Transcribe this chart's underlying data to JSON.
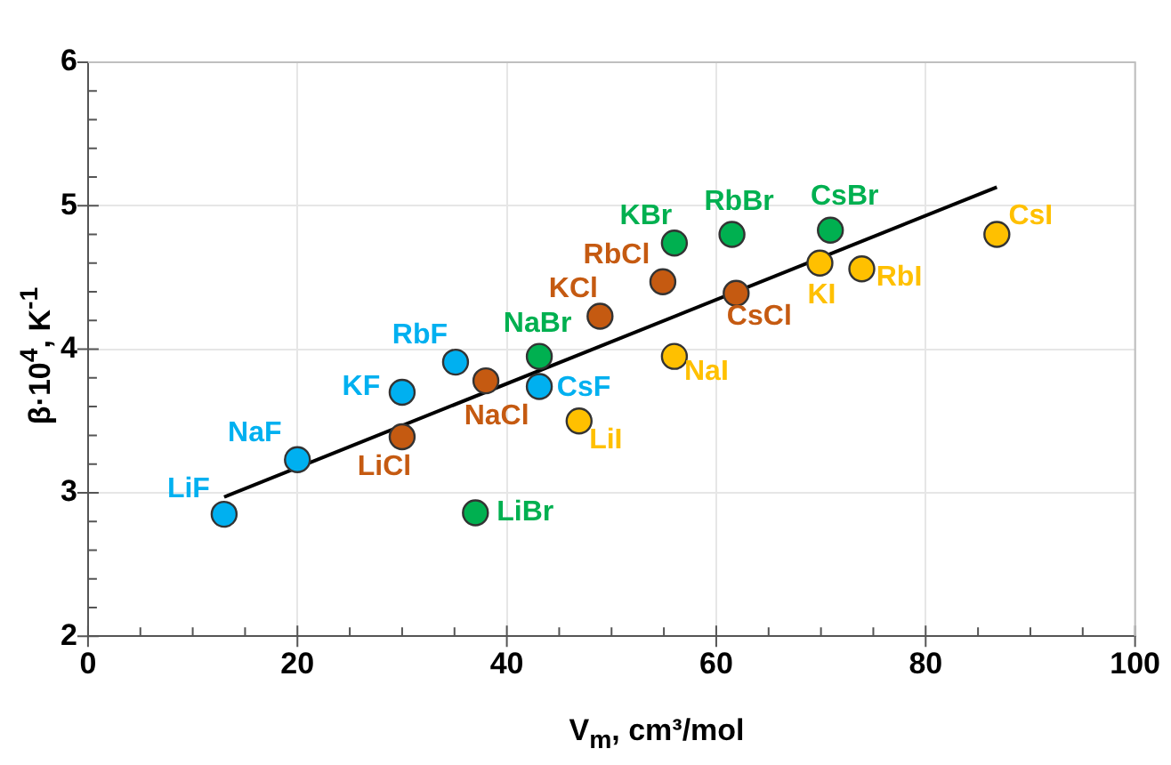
{
  "chart_data": {
    "type": "scatter",
    "xlabel": "V$_{m}$, cm³/mol",
    "ylabel": "β·10$^{4}$, K$^{-1}$",
    "xlim": [
      0,
      100
    ],
    "ylim": [
      2,
      6
    ],
    "xticks": [
      0,
      {
        "value": 5,
        "label": null
      },
      {
        "value": 10,
        "label": null
      },
      {
        "value": 15,
        "label": null
      },
      20,
      {
        "value": 25,
        "label": null
      },
      {
        "value": 30,
        "label": null
      },
      {
        "value": 35,
        "label": null
      },
      40,
      {
        "value": 45,
        "label": null
      },
      {
        "value": 50,
        "label": null
      },
      {
        "value": 55,
        "label": null
      },
      60,
      {
        "value": 65,
        "label": null
      },
      {
        "value": 70,
        "label": null
      },
      {
        "value": 75,
        "label": null
      },
      80,
      {
        "value": 85,
        "label": null
      },
      {
        "value": 90,
        "label": null
      },
      {
        "value": 95,
        "label": null
      },
      100
    ],
    "yticks": [
      2,
      {
        "value": 2.2,
        "label": null
      },
      {
        "value": 2.4,
        "label": null
      },
      {
        "value": 2.6,
        "label": null
      },
      {
        "value": 2.8,
        "label": null
      },
      3,
      {
        "value": 3.2,
        "label": null
      },
      {
        "value": 3.4,
        "label": null
      },
      {
        "value": 3.6,
        "label": null
      },
      {
        "value": 3.8,
        "label": null
      },
      4,
      {
        "value": 4.2,
        "label": null
      },
      {
        "value": 4.4,
        "label": null
      },
      {
        "value": 4.6,
        "label": null
      },
      {
        "value": 4.8,
        "label": null
      },
      5,
      {
        "value": 5.2,
        "label": null
      },
      {
        "value": 5.4,
        "label": null
      },
      {
        "value": 5.6,
        "label": null
      },
      {
        "value": 5.8,
        "label": null
      },
      6
    ],
    "grid": true,
    "legend": false,
    "marker": "circle",
    "series": [
      {
        "color": "#00b0f0",
        "x": [
          13,
          20,
          30,
          35.1,
          43.1
        ],
        "values": [
          2.85,
          3.23,
          3.7,
          3.91,
          3.74
        ],
        "value_labels": [
          "LiF",
          "NaF",
          "KF",
          "RbF",
          "CsF"
        ]
      },
      {
        "color": "#c55a11",
        "x": [
          30,
          38,
          48.9,
          54.9,
          61.9
        ],
        "values": [
          3.39,
          3.78,
          4.23,
          4.47,
          4.39
        ],
        "value_labels": [
          "LiCl",
          "NaCl",
          "KCl",
          "RbCl",
          "CsCl"
        ]
      },
      {
        "color": "#00b050",
        "x": [
          37,
          43.1,
          56,
          61.5,
          70.9
        ],
        "values": [
          2.86,
          3.95,
          4.74,
          4.8,
          4.83
        ],
        "value_labels": [
          "LiBr",
          "NaBr",
          "KBr",
          "RbBr",
          "CsBr"
        ]
      },
      {
        "color": "#ffc000",
        "x": [
          46.9,
          56,
          69.9,
          73.9,
          86.8
        ],
        "values": [
          3.5,
          3.95,
          4.6,
          4.56,
          4.8
        ],
        "value_labels": [
          "LiI",
          "NaI",
          "KI",
          "RbI",
          "CsI"
        ]
      },
      {
        "type": "line",
        "color": "#000000",
        "marker": "none",
        "x": [
          13,
          86.8
        ],
        "values": [
          2.97,
          5.13
        ]
      }
    ]
  }
}
